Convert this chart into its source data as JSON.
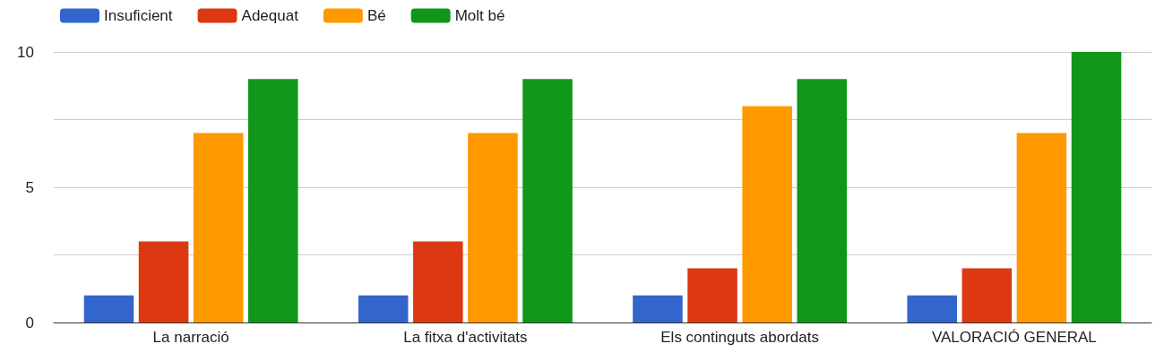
{
  "chart_data": {
    "type": "bar",
    "categories": [
      "La narració",
      "La fitxa d'activitats",
      "Els continguts abordats",
      "VALORACIÓ GENERAL"
    ],
    "series": [
      {
        "name": "Insuficient",
        "color": "#3366cc",
        "values": [
          1,
          1,
          1,
          1
        ]
      },
      {
        "name": "Adequat",
        "color": "#dc3912",
        "values": [
          3,
          3,
          2,
          2
        ]
      },
      {
        "name": "Bé",
        "color": "#ff9900",
        "values": [
          7,
          7,
          8,
          7
        ]
      },
      {
        "name": "Molt bé",
        "color": "#109618",
        "values": [
          9,
          9,
          9,
          10
        ]
      }
    ],
    "ylim": [
      0,
      10
    ],
    "yticks": [
      0,
      {
        "value": 2.5,
        "label": null
      },
      5,
      {
        "value": 7.5,
        "label": null
      },
      10
    ],
    "grid": true,
    "legend": "top left"
  }
}
